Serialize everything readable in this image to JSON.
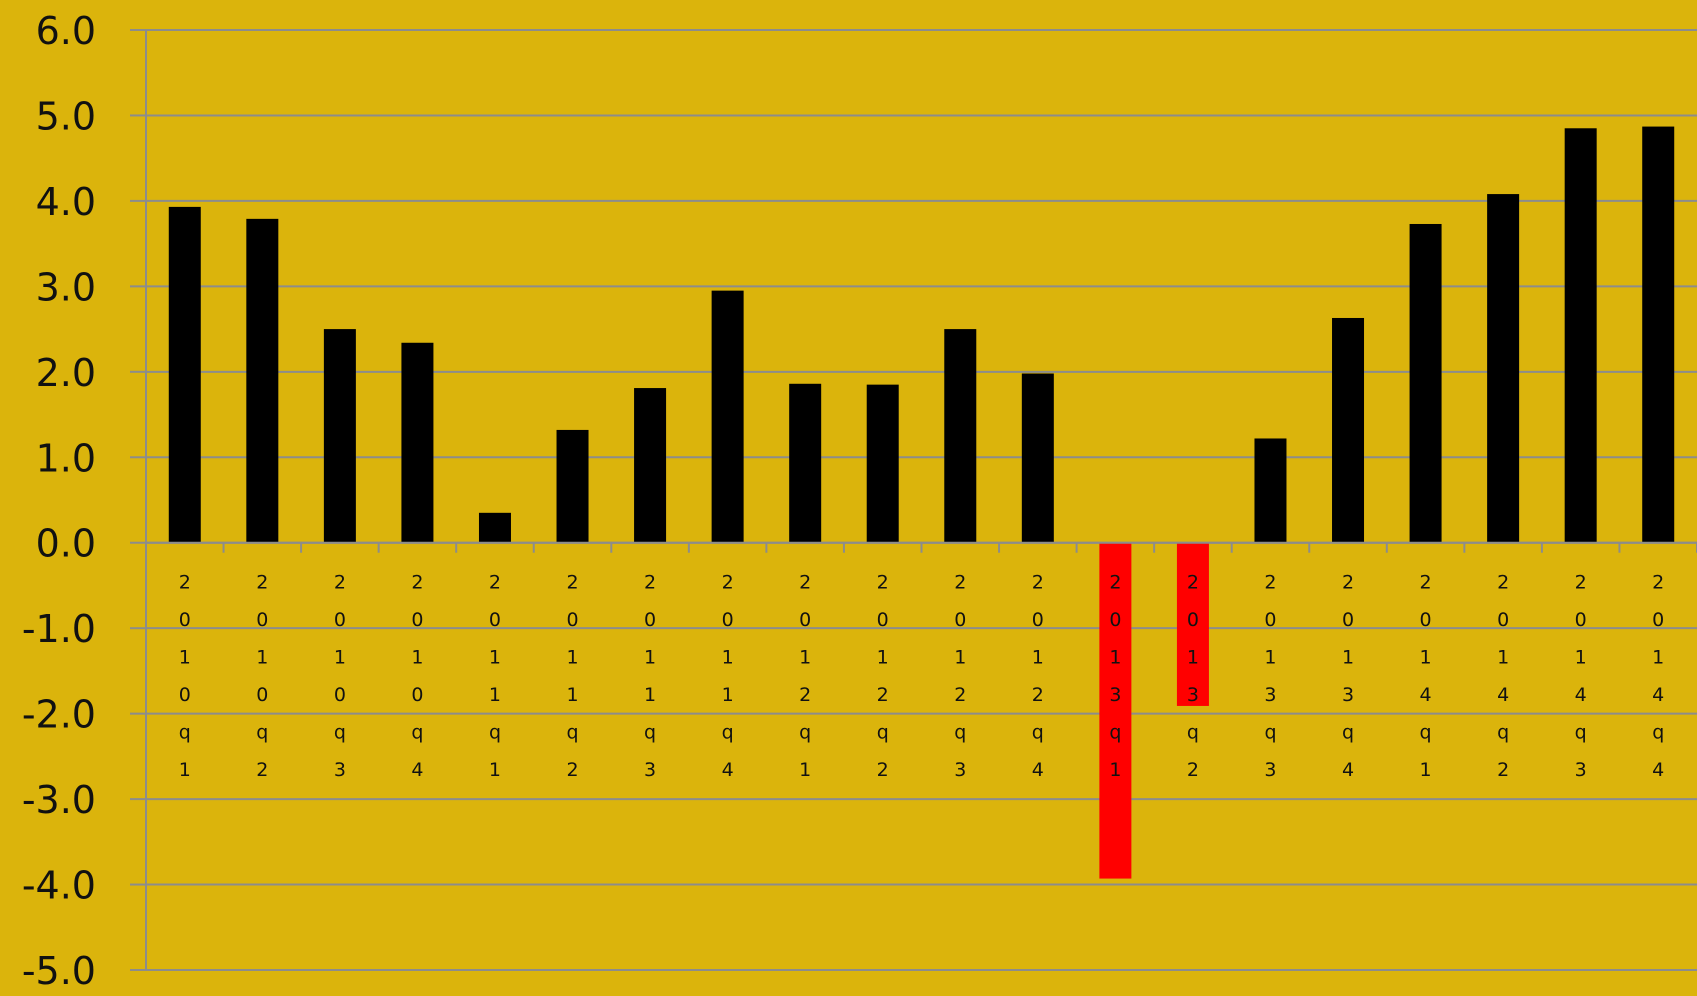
{
  "chart_data": {
    "type": "bar",
    "title": "",
    "xlabel": "",
    "ylabel": "",
    "ylim": [
      -5.0,
      6.0
    ],
    "yticks": [
      "6.0",
      "5.0",
      "4.0",
      "3.0",
      "2.0",
      "1.0",
      "0.0",
      "-1.0",
      "-2.0",
      "-3.0",
      "-4.0",
      "-5.0"
    ],
    "ytick_values": [
      6,
      5,
      4,
      3,
      2,
      1,
      0,
      -1,
      -2,
      -3,
      -4,
      -5
    ],
    "grid": true,
    "categories": [
      "2010q1",
      "2010q2",
      "2010q3",
      "2010q4",
      "2011q1",
      "2011q2",
      "2011q3",
      "2011q4",
      "2012q1",
      "2012q2",
      "2012q3",
      "2012q4",
      "2013q1",
      "2013q2",
      "2013q3",
      "2013q4",
      "2014q1",
      "2014q2",
      "2014q3",
      "2014q4"
    ],
    "values": [
      3.93,
      3.79,
      2.5,
      2.34,
      0.35,
      1.32,
      1.81,
      2.95,
      1.86,
      1.85,
      2.5,
      1.98,
      -3.93,
      -1.91,
      1.22,
      2.63,
      3.73,
      4.08,
      4.85,
      4.87
    ],
    "colors": {
      "background": "#dbb40c",
      "positive": "#000000",
      "negative": "#ff0000",
      "grid": "#8c8c8c",
      "text": "#111111"
    }
  }
}
